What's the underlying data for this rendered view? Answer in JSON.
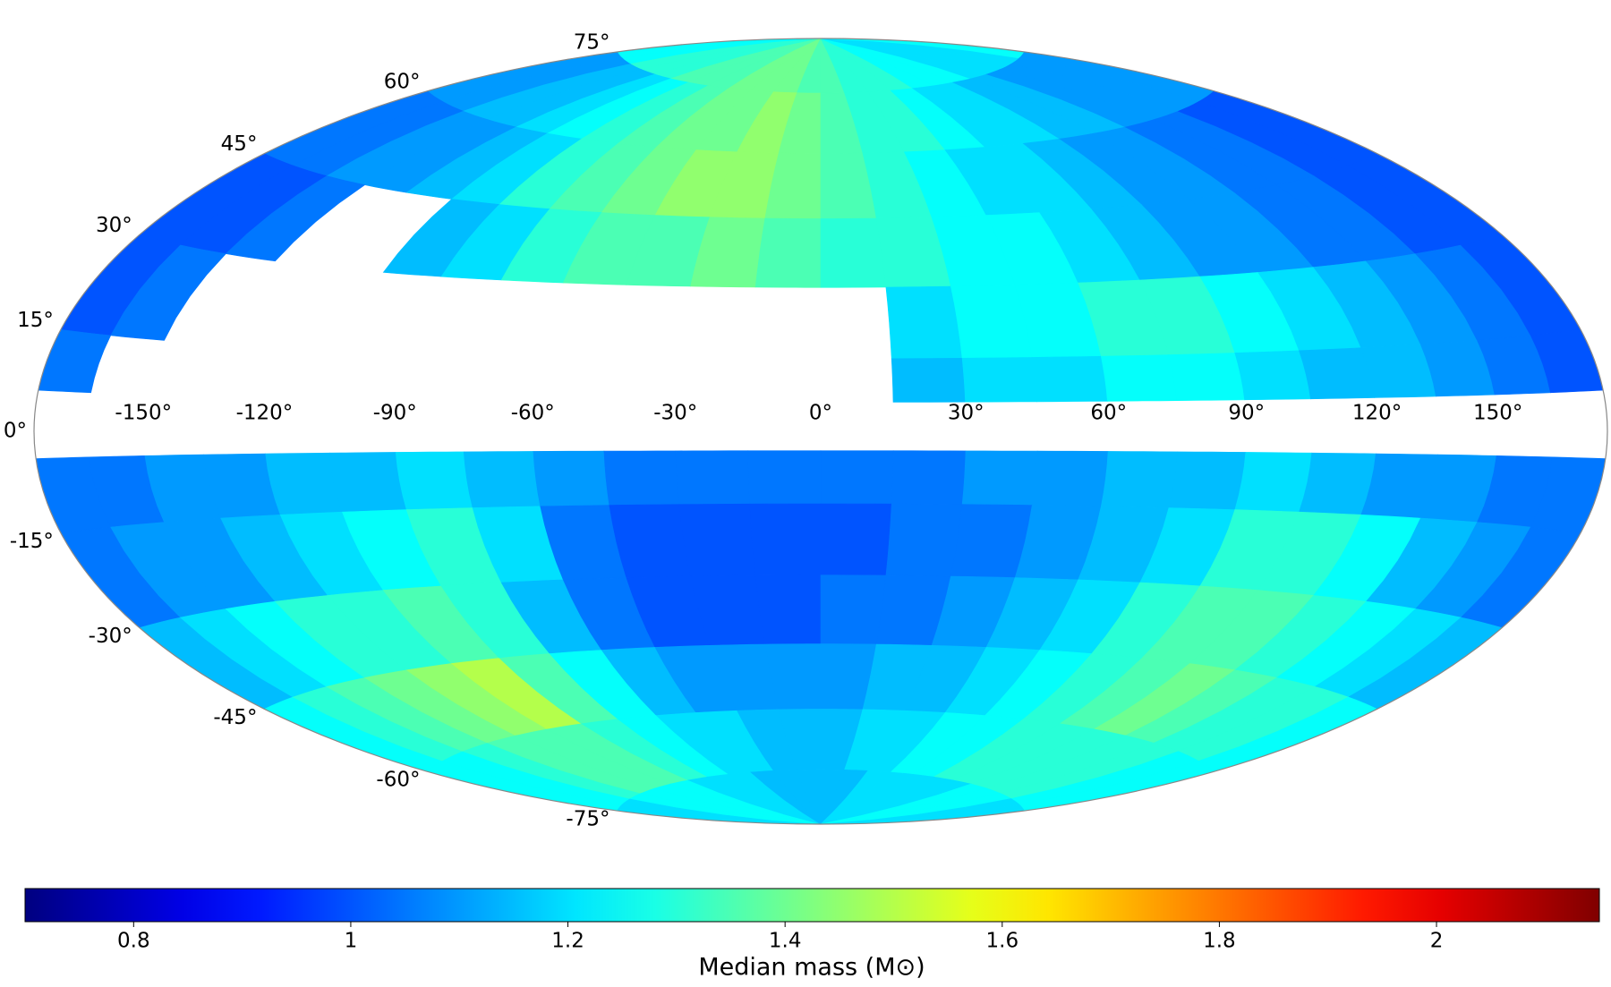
{
  "chart_data": {
    "type": "sky-map",
    "projection": "hammer",
    "colormap": "jet",
    "colorbar_label": "Median mass (M⊙)",
    "clim": [
      0.7,
      2.15
    ],
    "cticks": [
      0.8,
      1.0,
      1.2,
      1.4,
      1.6,
      1.8,
      2.0
    ],
    "lon_edges": [
      -180,
      -165,
      -150,
      -135,
      -120,
      -105,
      -90,
      -75,
      -60,
      -45,
      -30,
      -15,
      0,
      15,
      30,
      45,
      60,
      75,
      90,
      105,
      120,
      135,
      150,
      165,
      180
    ],
    "lat_edges": [
      90,
      75,
      60,
      45,
      30,
      15,
      6,
      -4,
      -15,
      -30,
      -45,
      -60,
      -75,
      -90
    ],
    "values": [
      [
        1.25,
        1.25,
        1.3,
        1.3,
        1.3,
        1.35,
        1.35,
        1.35,
        1.4,
        1.4,
        1.4,
        1.35,
        1.35,
        1.3,
        1.3,
        1.3,
        1.25,
        1.25,
        1.25,
        1.2,
        1.2,
        1.2,
        1.2,
        1.25
      ],
      [
        1.1,
        1.1,
        1.15,
        1.15,
        1.2,
        1.25,
        1.3,
        1.35,
        1.4,
        1.4,
        1.45,
        1.4,
        1.35,
        1.3,
        1.3,
        1.25,
        1.2,
        1.2,
        1.15,
        1.15,
        1.1,
        1.1,
        1.1,
        1.1
      ],
      [
        1.05,
        1.05,
        1.1,
        1.1,
        1.15,
        1.2,
        1.3,
        1.35,
        1.4,
        1.45,
        1.45,
        1.4,
        1.35,
        1.3,
        1.25,
        1.2,
        1.2,
        1.15,
        1.1,
        1.1,
        1.05,
        1.05,
        1.0,
        1.0
      ],
      [
        1.0,
        1.0,
        1.05,
        null,
        null,
        1.15,
        1.2,
        1.3,
        1.35,
        1.35,
        1.4,
        1.35,
        1.3,
        1.3,
        1.25,
        1.25,
        1.2,
        1.15,
        1.1,
        1.1,
        1.05,
        1.05,
        1.0,
        1.0
      ],
      [
        1.0,
        1.05,
        null,
        null,
        null,
        null,
        null,
        null,
        null,
        null,
        null,
        null,
        null,
        1.2,
        1.25,
        1.25,
        1.3,
        1.3,
        1.25,
        1.2,
        1.15,
        1.1,
        1.05,
        1.0
      ],
      [
        1.05,
        null,
        null,
        null,
        null,
        null,
        null,
        null,
        null,
        null,
        null,
        null,
        null,
        1.15,
        1.2,
        1.2,
        1.25,
        1.25,
        1.2,
        1.15,
        1.15,
        1.1,
        1.05,
        1.0
      ],
      [
        null,
        null,
        null,
        null,
        null,
        null,
        null,
        null,
        null,
        null,
        null,
        null,
        null,
        null,
        null,
        null,
        null,
        null,
        null,
        null,
        null,
        null,
        null,
        null
      ],
      [
        1.05,
        1.05,
        1.1,
        1.1,
        1.15,
        1.15,
        1.2,
        1.15,
        1.1,
        1.05,
        1.05,
        1.05,
        1.05,
        1.05,
        1.1,
        1.1,
        1.15,
        1.15,
        1.2,
        1.15,
        1.1,
        1.1,
        1.05,
        1.05
      ],
      [
        1.05,
        1.1,
        1.1,
        1.15,
        1.2,
        1.25,
        1.3,
        1.2,
        1.05,
        1.0,
        1.0,
        1.0,
        1.0,
        1.05,
        1.05,
        1.1,
        1.15,
        1.2,
        1.3,
        1.3,
        1.25,
        1.15,
        1.1,
        1.05
      ],
      [
        1.15,
        1.2,
        1.25,
        1.3,
        1.3,
        1.35,
        1.3,
        1.15,
        1.05,
        1.0,
        1.0,
        1.0,
        1.05,
        1.05,
        1.1,
        1.15,
        1.2,
        1.3,
        1.35,
        1.35,
        1.3,
        1.25,
        1.2,
        1.15
      ],
      [
        1.25,
        1.3,
        1.35,
        1.4,
        1.45,
        1.5,
        1.35,
        1.25,
        1.15,
        1.1,
        1.1,
        1.1,
        1.1,
        1.15,
        1.15,
        1.2,
        1.25,
        1.3,
        1.35,
        1.4,
        1.35,
        1.3,
        1.3,
        1.25
      ],
      [
        1.25,
        1.25,
        1.3,
        1.35,
        1.35,
        1.35,
        1.3,
        1.25,
        1.2,
        1.2,
        1.15,
        1.15,
        1.15,
        1.2,
        1.2,
        1.25,
        1.25,
        1.3,
        1.3,
        1.3,
        1.3,
        1.3,
        1.25,
        1.25
      ],
      [
        1.2,
        1.2,
        1.25,
        1.25,
        1.25,
        1.25,
        1.2,
        1.2,
        1.2,
        1.15,
        1.15,
        1.15,
        1.15,
        1.15,
        1.2,
        1.2,
        1.2,
        1.2,
        1.2,
        1.25,
        1.25,
        1.25,
        1.2,
        1.2
      ]
    ],
    "xticks": [
      {
        "value": -150,
        "label": "-150°"
      },
      {
        "value": -120,
        "label": "-120°"
      },
      {
        "value": -90,
        "label": "-90°"
      },
      {
        "value": -60,
        "label": "-60°"
      },
      {
        "value": -30,
        "label": "-30°"
      },
      {
        "value": 0,
        "label": "0°"
      },
      {
        "value": 30,
        "label": "30°"
      },
      {
        "value": 60,
        "label": "60°"
      },
      {
        "value": 90,
        "label": "90°"
      },
      {
        "value": 120,
        "label": "120°"
      },
      {
        "value": 150,
        "label": "150°"
      }
    ],
    "yticks": [
      {
        "value": -75,
        "label": "-75°"
      },
      {
        "value": -60,
        "label": "-60°"
      },
      {
        "value": -45,
        "label": "-45°"
      },
      {
        "value": -30,
        "label": "-30°"
      },
      {
        "value": -15,
        "label": "-15°"
      },
      {
        "value": 0,
        "label": "0°"
      },
      {
        "value": 15,
        "label": "15°"
      },
      {
        "value": 30,
        "label": "30°"
      },
      {
        "value": 45,
        "label": "45°"
      },
      {
        "value": 60,
        "label": "60°"
      },
      {
        "value": 75,
        "label": "75°"
      }
    ]
  }
}
